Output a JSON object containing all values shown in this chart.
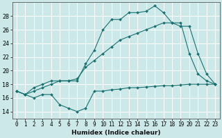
{
  "title": "",
  "xlabel": "Humidex (Indice chaleur)",
  "ylabel": "",
  "background_color": "#cce8e8",
  "grid_color": "#ffffff",
  "line_color": "#1a7070",
  "xlim": [
    -0.5,
    23.5
  ],
  "ylim": [
    13.0,
    30.0
  ],
  "xticks": [
    0,
    1,
    2,
    3,
    4,
    5,
    6,
    7,
    8,
    9,
    10,
    11,
    12,
    13,
    14,
    15,
    16,
    17,
    18,
    19,
    20,
    21,
    22,
    23
  ],
  "yticks": [
    14,
    16,
    18,
    20,
    22,
    24,
    26,
    28
  ],
  "line1_x": [
    0,
    1,
    2,
    3,
    4,
    5,
    6,
    7,
    8,
    9,
    10,
    11,
    12,
    13,
    14,
    15,
    16,
    17,
    18,
    19,
    20,
    21,
    22,
    23
  ],
  "line1_y": [
    17.0,
    16.5,
    16.0,
    16.5,
    16.5,
    15.0,
    14.5,
    14.0,
    14.5,
    17.0,
    17.0,
    17.2,
    17.3,
    17.5,
    17.5,
    17.6,
    17.7,
    17.8,
    17.8,
    17.9,
    18.0,
    18.0,
    18.0,
    18.0
  ],
  "line2_x": [
    0,
    1,
    2,
    3,
    4,
    5,
    6,
    7,
    8,
    9,
    10,
    11,
    12,
    13,
    14,
    15,
    16,
    17,
    18,
    19,
    20,
    21,
    22,
    23
  ],
  "line2_y": [
    17.0,
    16.5,
    17.5,
    18.0,
    18.5,
    18.5,
    18.5,
    18.5,
    21.0,
    23.0,
    26.0,
    27.5,
    27.5,
    28.5,
    28.5,
    28.7,
    29.5,
    28.5,
    27.0,
    27.0,
    22.5,
    19.5,
    18.5,
    18.0
  ],
  "line3_x": [
    0,
    1,
    2,
    3,
    4,
    5,
    6,
    7,
    8,
    9,
    10,
    11,
    12,
    13,
    14,
    15,
    16,
    17,
    18,
    19,
    20,
    21,
    22,
    23
  ],
  "line3_y": [
    17.0,
    16.5,
    17.0,
    17.5,
    18.0,
    18.5,
    18.5,
    18.8,
    20.5,
    21.5,
    22.5,
    23.5,
    24.5,
    25.0,
    25.5,
    26.0,
    26.5,
    27.0,
    27.0,
    26.5,
    26.5,
    22.5,
    19.5,
    18.0
  ],
  "tick_fontsize": 5.5,
  "xlabel_fontsize": 6.5,
  "marker_size": 2.0,
  "line_width": 0.8
}
